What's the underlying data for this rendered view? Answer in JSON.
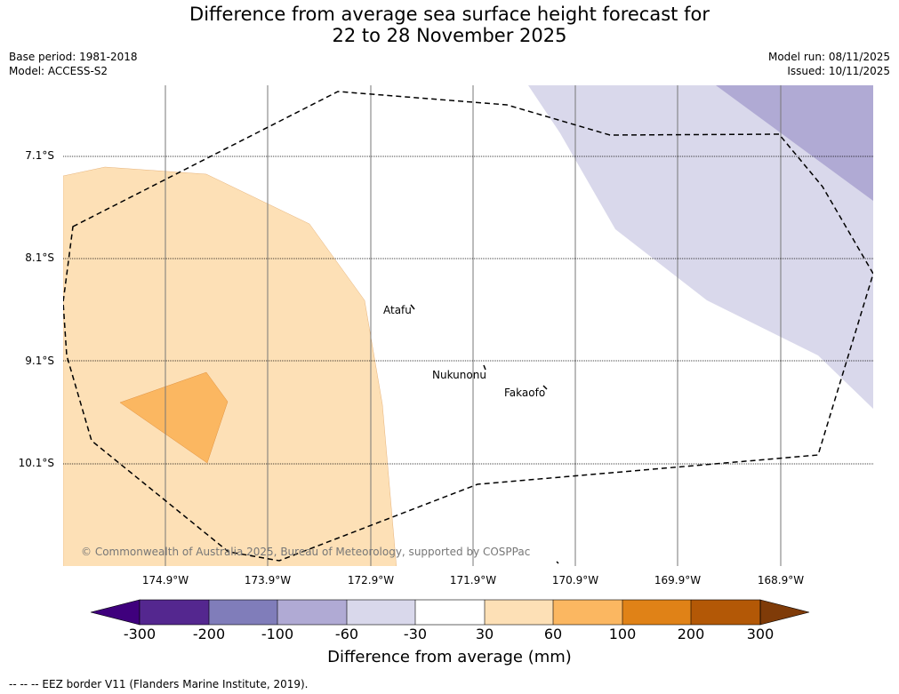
{
  "title": {
    "line1": "Difference from average sea surface height forecast for",
    "line2": "22 to 28 November 2025"
  },
  "meta": {
    "base_period": "Base period: 1981-2018",
    "model": "Model: ACCESS-S2",
    "model_run": "Model run: 08/11/2025",
    "issued": "Issued: 10/11/2025"
  },
  "map": {
    "latitude_labels": [
      "7.1°S",
      "8.1°S",
      "9.1°S",
      "10.1°S"
    ],
    "longitude_labels": [
      "174.9°W",
      "173.9°W",
      "172.9°W",
      "171.9°W",
      "170.9°W",
      "169.9°W",
      "168.9°W"
    ],
    "places": [
      "Atafu",
      "Nukunonu",
      "Fakaofo"
    ],
    "copyright": "© Commonwealth of Australia 2025, Bureau of Meteorology, supported by COSPPac"
  },
  "colorbar": {
    "ticks": [
      "-300",
      "-200",
      "-100",
      "-60",
      "-30",
      "30",
      "60",
      "100",
      "200",
      "300"
    ],
    "colors": [
      "#3f007d",
      "#54278f",
      "#807dba",
      "#b0aad4",
      "#d9d8eb",
      "#ffffff",
      "#fde0b6",
      "#fbb761",
      "#e08217",
      "#b35806",
      "#7f3b08"
    ],
    "title": "Difference from average (mm)"
  },
  "footer": {
    "legend": "--  --  -- EEZ border V11 (Flanders Marine Institute, 2019)."
  }
}
